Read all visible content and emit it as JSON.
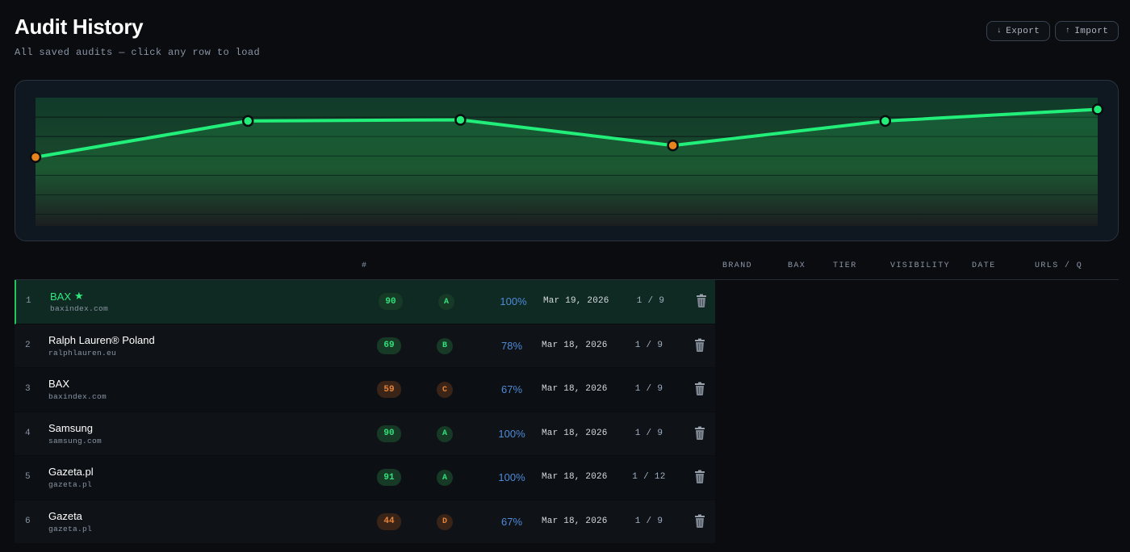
{
  "header": {
    "title": "Audit History",
    "subtitle": "All saved audits — click any row to load",
    "export_label": "Export",
    "import_label": "Import",
    "export_icon": "down-arrow",
    "import_icon": "up-arrow"
  },
  "chart": {
    "type": "line",
    "values": [
      59,
      90,
      91,
      69,
      90,
      100
    ],
    "point_status": [
      "warn",
      "good",
      "good",
      "warn",
      "good",
      "good"
    ],
    "colors": {
      "line": "#22ee7a",
      "good": "#22ee7a",
      "warn": "#e8841e"
    }
  },
  "table": {
    "columns": {
      "index": "#",
      "brand": "BRAND",
      "bax": "BAX",
      "tier": "TIER",
      "visibility": "VISIBILITY",
      "date": "DATE",
      "urls": "URLS / Q"
    },
    "rows": [
      {
        "index": "1",
        "brand": "BAX",
        "starred": true,
        "domain": "baxindex.com",
        "bax": "90",
        "bax_status": "good",
        "tier": "A",
        "tier_status": "good",
        "visibility": "100%",
        "date": "Mar 19, 2026",
        "urls": "1 / 9",
        "active": true
      },
      {
        "index": "2",
        "brand": "Ralph Lauren® Poland",
        "starred": false,
        "domain": "ralphlauren.eu",
        "bax": "69",
        "bax_status": "good",
        "tier": "B",
        "tier_status": "good",
        "visibility": "78%",
        "date": "Mar 18, 2026",
        "urls": "1 / 9",
        "active": false
      },
      {
        "index": "3",
        "brand": "BAX",
        "starred": false,
        "domain": "baxindex.com",
        "bax": "59",
        "bax_status": "warn",
        "tier": "C",
        "tier_status": "warn",
        "visibility": "67%",
        "date": "Mar 18, 2026",
        "urls": "1 / 9",
        "active": false
      },
      {
        "index": "4",
        "brand": "Samsung",
        "starred": false,
        "domain": "samsung.com",
        "bax": "90",
        "bax_status": "good",
        "tier": "A",
        "tier_status": "good",
        "visibility": "100%",
        "date": "Mar 18, 2026",
        "urls": "1 / 9",
        "active": false
      },
      {
        "index": "5",
        "brand": "Gazeta.pl",
        "starred": false,
        "domain": "gazeta.pl",
        "bax": "91",
        "bax_status": "good",
        "tier": "A",
        "tier_status": "good",
        "visibility": "100%",
        "date": "Mar 18, 2026",
        "urls": "1 / 12",
        "active": false
      },
      {
        "index": "6",
        "brand": "Gazeta",
        "starred": false,
        "domain": "gazeta.pl",
        "bax": "44",
        "bax_status": "warn",
        "tier": "D",
        "tier_status": "warn",
        "visibility": "67%",
        "date": "Mar 18, 2026",
        "urls": "1 / 9",
        "active": false
      }
    ]
  },
  "icons": {
    "trash": "trash-icon",
    "star": "star-icon"
  }
}
